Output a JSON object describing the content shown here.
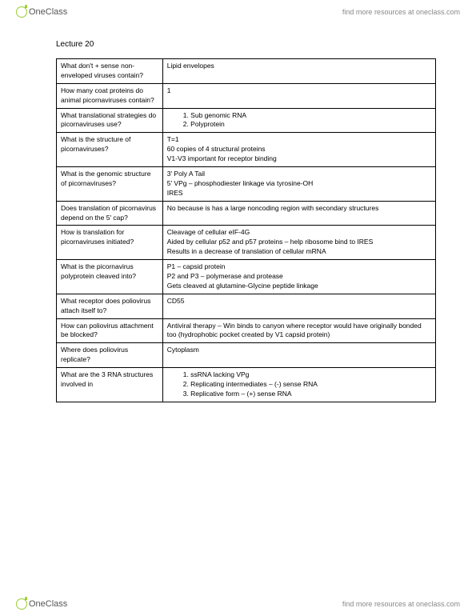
{
  "header": {
    "logo_text": "OneClass",
    "tagline": "find more resources at oneclass.com"
  },
  "footer": {
    "logo_text": "OneClass",
    "tagline": "find more resources at oneclass.com"
  },
  "lecture_title": "Lecture 20",
  "rows": [
    {
      "q": "What don't + sense non-enveloped viruses contain?",
      "a": "Lipid envelopes"
    },
    {
      "q": "How many coat proteins do animal picornaviruses contain?",
      "a": "1"
    },
    {
      "q": "What translational strategies do picornaviruses use?",
      "a_list": [
        "Sub genomic RNA",
        "Polyprotein"
      ]
    },
    {
      "q": "What is the structure of picornaviruses?",
      "a": "T=1\n60 copies of 4 structural proteins\nV1-V3 important for receptor binding"
    },
    {
      "q": "What is the genomic structure of picornaviruses?",
      "a": "3' Poly A Tail\n5' VPg – phosphodiester linkage via tyrosine-OH\nIRES"
    },
    {
      "q": "Does translation of picornavirus depend on the 5' cap?",
      "a": "No because is has a large noncoding region with secondary structures"
    },
    {
      "q": "How is translation for picornaviruses initiated?",
      "a": "Cleavage of cellular eIF-4G\nAided by cellular p52 and p57 proteins – help ribosome bind to IRES\nResults in a decrease of translation of cellular mRNA"
    },
    {
      "q": "What is the picornavirus polyprotein cleaved into?",
      "a": "P1 – capsid protein\nP2 and P3 – polymerase and protease\nGets cleaved at glutamine-Glycine peptide linkage"
    },
    {
      "q": "What receptor does poliovirus attach itself to?",
      "a": "CD55"
    },
    {
      "q": "How can poliovirus attachment be blocked?",
      "a": "Antiviral therapy – Win binds to canyon where receptor would have originally bonded too (hydrophobic pocket created by V1 capsid protein)"
    },
    {
      "q": "Where does poliovirus replicate?",
      "a": "Cytoplasm"
    },
    {
      "q": "What are the 3 RNA structures involved in",
      "a_list": [
        "ssRNA lacking VPg",
        "Replicating intermediates – (-) sense RNA",
        "Replicative form – (+) sense RNA"
      ]
    }
  ]
}
